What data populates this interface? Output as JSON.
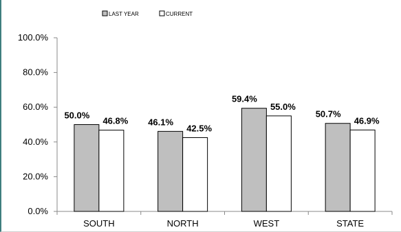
{
  "chart_data": {
    "type": "bar",
    "categories": [
      "SOUTH",
      "NORTH",
      "WEST",
      "STATE"
    ],
    "series": [
      {
        "name": "LAST YEAR",
        "values": [
          50.0,
          46.1,
          59.4,
          50.7
        ],
        "color": "#bfbfbf"
      },
      {
        "name": "CURRENT",
        "values": [
          46.8,
          42.5,
          55.0,
          46.9
        ],
        "color": "#ffffff"
      }
    ],
    "ylim": [
      0,
      100
    ],
    "yticks": [
      0,
      20,
      40,
      60,
      80,
      100
    ],
    "ytick_labels": [
      "0.0%",
      "20.0%",
      "40.0%",
      "60.0%",
      "80.0%",
      "100.0%"
    ],
    "data_labels": [
      [
        "50.0%",
        "46.1%",
        "59.4%",
        "50.7%"
      ],
      [
        "46.8%",
        "42.5%",
        "55.0%",
        "46.9%"
      ]
    ],
    "legend_position": "top-left",
    "grid": false
  }
}
